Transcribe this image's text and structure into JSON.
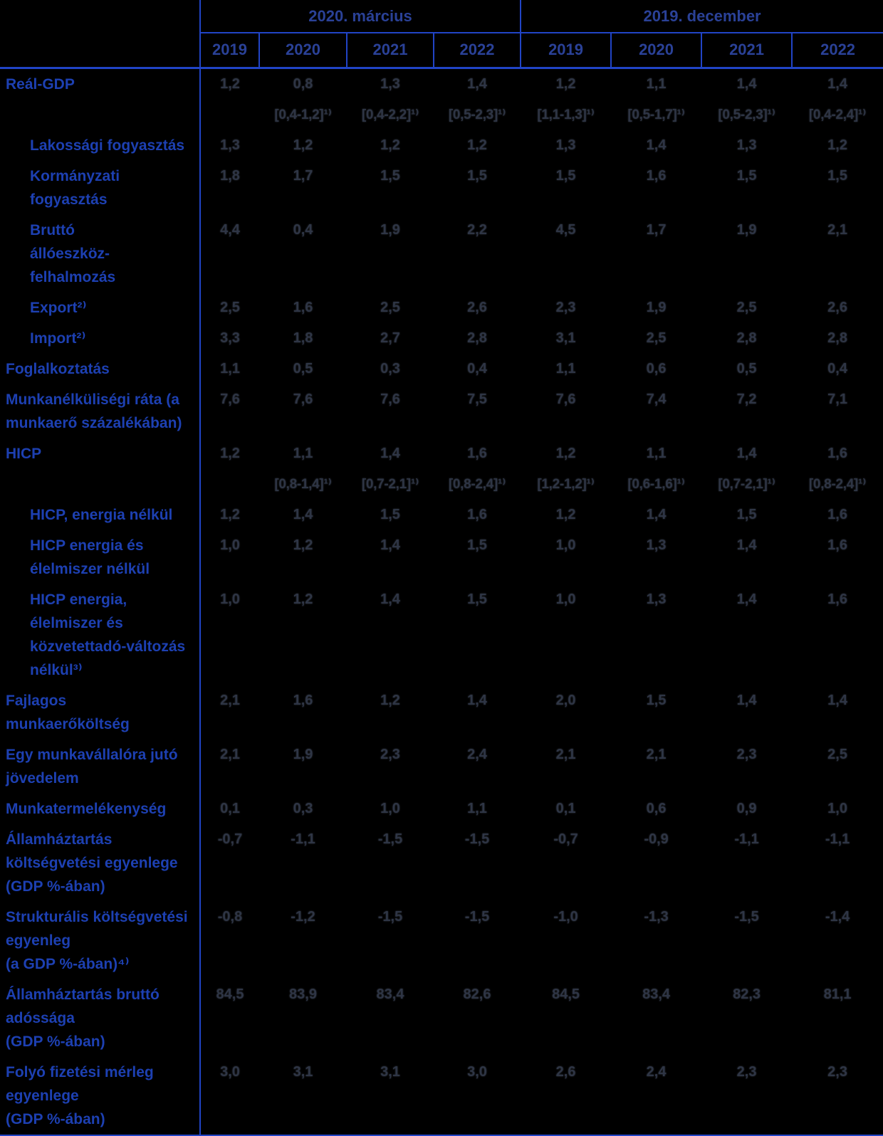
{
  "table": {
    "group_headers": [
      {
        "label": "2020. március"
      },
      {
        "label": "2019. december"
      }
    ],
    "year_headers": [
      "2019",
      "2020",
      "2021",
      "2022",
      "2019",
      "2020",
      "2021",
      "2022"
    ],
    "colors": {
      "background": "#000000",
      "grid_line": "#2144c6",
      "header_text": "#2a4197",
      "row_label_text": "#1d40b2",
      "value_text": "#2e3545"
    },
    "rows": [
      {
        "label": "Reál-GDP",
        "indent": false,
        "type": "values",
        "march": [
          "1,2",
          "0,8",
          "1,3",
          "1,4"
        ],
        "december": [
          "1,2",
          "1,1",
          "1,4",
          "1,4"
        ]
      },
      {
        "label": "",
        "indent": false,
        "type": "range",
        "march": [
          "",
          "[0,4-1,2]¹⁾",
          "[0,4-2,2]¹⁾",
          "[0,5-2,3]¹⁾"
        ],
        "december": [
          "[1,1-1,3]¹⁾",
          "[0,5-1,7]¹⁾",
          "[0,5-2,3]¹⁾",
          "[0,4-2,4]¹⁾"
        ]
      },
      {
        "label": "Lakossági fogyasztás",
        "indent": true,
        "type": "values",
        "march": [
          "1,3",
          "1,2",
          "1,2",
          "1,2"
        ],
        "december": [
          "1,3",
          "1,4",
          "1,3",
          "1,2"
        ]
      },
      {
        "label": "Kormányzati\nfogyasztás",
        "indent": true,
        "type": "values",
        "march": [
          "1,8",
          "1,7",
          "1,5",
          "1,5"
        ],
        "december": [
          "1,5",
          "1,6",
          "1,5",
          "1,5"
        ]
      },
      {
        "label": "Bruttó\nállóeszköz-felhalmozás",
        "indent": true,
        "type": "values",
        "march": [
          "4,4",
          "0,4",
          "1,9",
          "2,2"
        ],
        "december": [
          "4,5",
          "1,7",
          "1,9",
          "2,1"
        ]
      },
      {
        "label": "Export²⁾",
        "indent": true,
        "type": "values",
        "march": [
          "2,5",
          "1,6",
          "2,5",
          "2,6"
        ],
        "december": [
          "2,3",
          "1,9",
          "2,5",
          "2,6"
        ]
      },
      {
        "label": "Import²⁾",
        "indent": true,
        "type": "values",
        "march": [
          "3,3",
          "1,8",
          "2,7",
          "2,8"
        ],
        "december": [
          "3,1",
          "2,5",
          "2,8",
          "2,8"
        ]
      },
      {
        "label": "Foglalkoztatás",
        "indent": false,
        "type": "values",
        "march": [
          "1,1",
          "0,5",
          "0,3",
          "0,4"
        ],
        "december": [
          "1,1",
          "0,6",
          "0,5",
          "0,4"
        ]
      },
      {
        "label": "Munkanélküliségi ráta (a\nmunkaerő százalékában)",
        "indent": false,
        "type": "values",
        "march": [
          "7,6",
          "7,6",
          "7,6",
          "7,5"
        ],
        "december": [
          "7,6",
          "7,4",
          "7,2",
          "7,1"
        ]
      },
      {
        "label": "HICP",
        "indent": false,
        "type": "values",
        "march": [
          "1,2",
          "1,1",
          "1,4",
          "1,6"
        ],
        "december": [
          "1,2",
          "1,1",
          "1,4",
          "1,6"
        ]
      },
      {
        "label": "",
        "indent": false,
        "type": "range",
        "march": [
          "",
          "[0,8-1,4]¹⁾",
          "[0,7-2,1]¹⁾",
          "[0,8-2,4]¹⁾"
        ],
        "december": [
          "[1,2-1,2]¹⁾",
          "[0,6-1,6]¹⁾",
          "[0,7-2,1]¹⁾",
          "[0,8-2,4]¹⁾"
        ]
      },
      {
        "label": "HICP, energia nélkül",
        "indent": true,
        "type": "values",
        "march": [
          "1,2",
          "1,4",
          "1,5",
          "1,6"
        ],
        "december": [
          "1,2",
          "1,4",
          "1,5",
          "1,6"
        ]
      },
      {
        "label": "HICP energia és\nélelmiszer nélkül",
        "indent": true,
        "type": "values",
        "march": [
          "1,0",
          "1,2",
          "1,4",
          "1,5"
        ],
        "december": [
          "1,0",
          "1,3",
          "1,4",
          "1,6"
        ]
      },
      {
        "label": "HICP energia,\nélelmiszer és\nközvetettadó-változás\nnélkül³⁾",
        "indent": true,
        "type": "values",
        "march": [
          "1,0",
          "1,2",
          "1,4",
          "1,5"
        ],
        "december": [
          "1,0",
          "1,3",
          "1,4",
          "1,6"
        ]
      },
      {
        "label": "Fajlagos\nmunkaerőköltség",
        "indent": false,
        "type": "values",
        "march": [
          "2,1",
          "1,6",
          "1,2",
          "1,4"
        ],
        "december": [
          "2,0",
          "1,5",
          "1,4",
          "1,4"
        ]
      },
      {
        "label": "Egy munkavállalóra jutó\njövedelem",
        "indent": false,
        "type": "values",
        "march": [
          "2,1",
          "1,9",
          "2,3",
          "2,4"
        ],
        "december": [
          "2,1",
          "2,1",
          "2,3",
          "2,5"
        ]
      },
      {
        "label": "Munkatermelékenység",
        "indent": false,
        "type": "values",
        "march": [
          "0,1",
          "0,3",
          "1,0",
          "1,1"
        ],
        "december": [
          "0,1",
          "0,6",
          "0,9",
          "1,0"
        ]
      },
      {
        "label": "Államháztartás\nköltségvetési egyenlege\n(GDP %-ában)",
        "indent": false,
        "type": "values",
        "march": [
          "-0,7",
          "-1,1",
          "-1,5",
          "-1,5"
        ],
        "december": [
          "-0,7",
          "-0,9",
          "-1,1",
          "-1,1"
        ]
      },
      {
        "label": "Strukturális költségvetési\negyenleg\n(a GDP %-ában)⁴⁾",
        "indent": false,
        "type": "values",
        "march": [
          "-0,8",
          "-1,2",
          "-1,5",
          "-1,5"
        ],
        "december": [
          "-1,0",
          "-1,3",
          "-1,5",
          "-1,4"
        ]
      },
      {
        "label": "Államháztartás bruttó\nadóssága\n(GDP %-ában)",
        "indent": false,
        "type": "values",
        "march": [
          "84,5",
          "83,9",
          "83,4",
          "82,6"
        ],
        "december": [
          "84,5",
          "83,4",
          "82,3",
          "81,1"
        ]
      },
      {
        "label": "Folyó fizetési mérleg\negyenlege\n(GDP %-ában)",
        "indent": false,
        "type": "values",
        "march": [
          "3,0",
          "3,1",
          "3,1",
          "3,0"
        ],
        "december": [
          "2,6",
          "2,4",
          "2,3",
          "2,3"
        ]
      }
    ]
  }
}
